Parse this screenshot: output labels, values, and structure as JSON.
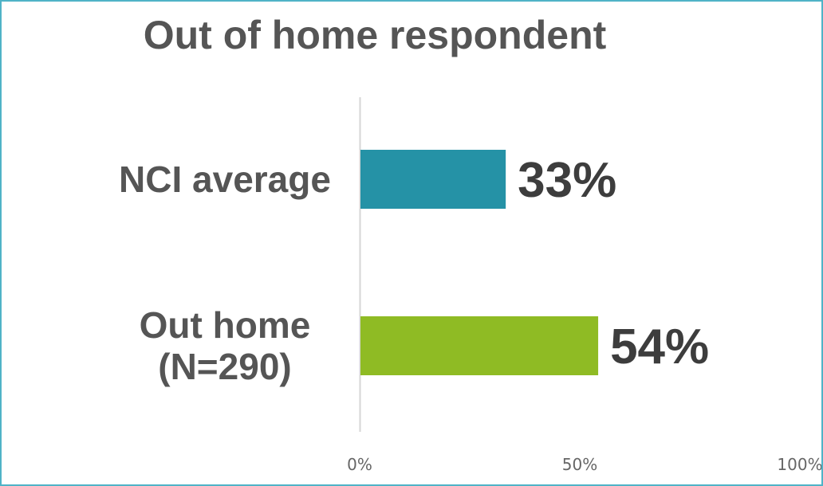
{
  "chart_data": {
    "type": "bar",
    "orientation": "horizontal",
    "title": "Out of home respondent",
    "categories": [
      "NCI average",
      "Out home\n(N=290)"
    ],
    "values": [
      33,
      54
    ],
    "data_labels": [
      "33%",
      "54%"
    ],
    "x_ticks": [
      "0%",
      "50%",
      "100%"
    ],
    "xlim": [
      0,
      100
    ],
    "xlabel": "",
    "ylabel": "",
    "grid": false,
    "legend": "none",
    "colors": [
      "#2592a6",
      "#8fbb24"
    ]
  }
}
